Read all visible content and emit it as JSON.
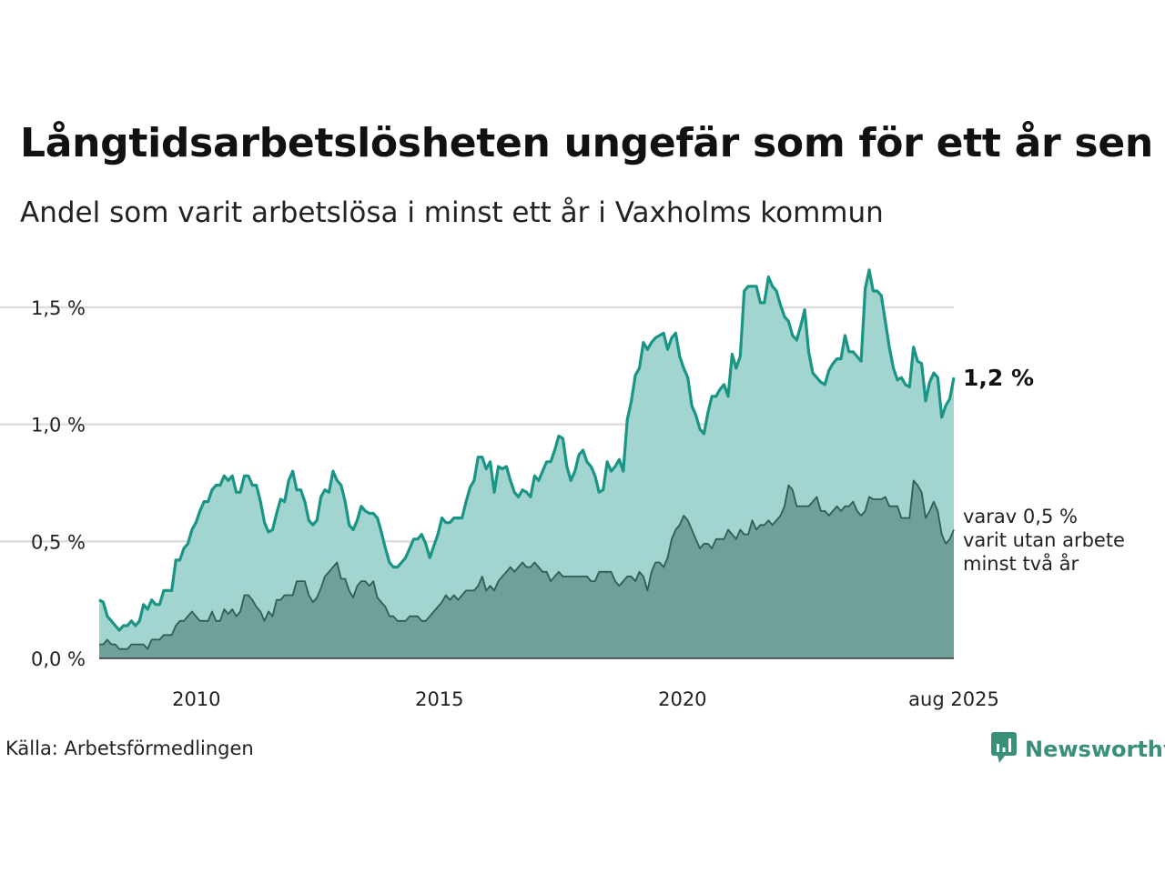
{
  "title": "Långtidsarbetslösheten ungefär som för ett år sen",
  "subtitle": "Andel som varit arbetslösa i minst ett år i Vaxholms kommun",
  "source": "Källa: Arbetsförmedlingen",
  "brand": "Newsworthy",
  "colors": {
    "main_line": "#1a9484",
    "main_fill": "#a2d5cf",
    "sub_line": "#2f5f54",
    "sub_fill": "#70a098",
    "grid": "#dddddd",
    "brand": "#3a8f7a"
  },
  "chart_data": {
    "type": "area",
    "x_start": "2008-01",
    "x_end": "2025-08",
    "x_tick_labels": [
      "2010",
      "2015",
      "2020",
      "aug 2025"
    ],
    "x_tick_dates": [
      "2010-01",
      "2015-01",
      "2020-01",
      "2025-08"
    ],
    "y_tick_labels": [
      "0,0 %",
      "0,5 %",
      "1,0 %",
      "1,5 %"
    ],
    "y_ticks": [
      0,
      0.5,
      1.0,
      1.5
    ],
    "ylim": [
      0,
      1.7
    ],
    "grid": true,
    "end_labels": {
      "main": "1,2 %",
      "sub_lines": [
        "varav 0,5 %",
        "varit utan arbete",
        "minst två år"
      ]
    },
    "series": [
      {
        "key": "main",
        "values": [
          0.25,
          0.24,
          0.18,
          0.16,
          0.14,
          0.12,
          0.14,
          0.14,
          0.16,
          0.14,
          0.16,
          0.23,
          0.21,
          0.25,
          0.23,
          0.23,
          0.29,
          0.29,
          0.29,
          0.42,
          0.42,
          0.47,
          0.49,
          0.55,
          0.58,
          0.63,
          0.67,
          0.67,
          0.72,
          0.74,
          0.74,
          0.78,
          0.76,
          0.78,
          0.71,
          0.71,
          0.78,
          0.78,
          0.74,
          0.74,
          0.67,
          0.58,
          0.54,
          0.55,
          0.62,
          0.68,
          0.67,
          0.76,
          0.8,
          0.72,
          0.72,
          0.67,
          0.59,
          0.57,
          0.59,
          0.69,
          0.72,
          0.71,
          0.8,
          0.76,
          0.74,
          0.67,
          0.57,
          0.55,
          0.59,
          0.65,
          0.63,
          0.62,
          0.62,
          0.6,
          0.54,
          0.47,
          0.41,
          0.39,
          0.39,
          0.41,
          0.43,
          0.47,
          0.51,
          0.51,
          0.53,
          0.49,
          0.43,
          0.48,
          0.53,
          0.6,
          0.58,
          0.58,
          0.6,
          0.6,
          0.6,
          0.67,
          0.73,
          0.76,
          0.86,
          0.86,
          0.81,
          0.84,
          0.71,
          0.82,
          0.81,
          0.82,
          0.76,
          0.71,
          0.69,
          0.72,
          0.71,
          0.69,
          0.78,
          0.76,
          0.8,
          0.84,
          0.84,
          0.89,
          0.95,
          0.94,
          0.82,
          0.76,
          0.8,
          0.87,
          0.89,
          0.84,
          0.82,
          0.78,
          0.71,
          0.72,
          0.84,
          0.8,
          0.82,
          0.85,
          0.8,
          1.02,
          1.1,
          1.21,
          1.24,
          1.35,
          1.32,
          1.35,
          1.37,
          1.38,
          1.39,
          1.32,
          1.37,
          1.39,
          1.29,
          1.24,
          1.2,
          1.08,
          1.04,
          0.98,
          0.96,
          1.05,
          1.12,
          1.12,
          1.15,
          1.17,
          1.12,
          1.3,
          1.24,
          1.29,
          1.57,
          1.59,
          1.59,
          1.59,
          1.52,
          1.52,
          1.63,
          1.59,
          1.57,
          1.51,
          1.46,
          1.44,
          1.38,
          1.36,
          1.42,
          1.49,
          1.31,
          1.22,
          1.2,
          1.18,
          1.17,
          1.23,
          1.26,
          1.28,
          1.28,
          1.38,
          1.31,
          1.31,
          1.29,
          1.27,
          1.58,
          1.66,
          1.57,
          1.57,
          1.55,
          1.44,
          1.33,
          1.24,
          1.19,
          1.2,
          1.17,
          1.16,
          1.33,
          1.27,
          1.26,
          1.1,
          1.18,
          1.22,
          1.2,
          1.03,
          1.08,
          1.11,
          1.2
        ]
      },
      {
        "key": "sub",
        "values": [
          0.06,
          0.06,
          0.08,
          0.06,
          0.06,
          0.04,
          0.04,
          0.04,
          0.06,
          0.06,
          0.06,
          0.06,
          0.04,
          0.08,
          0.08,
          0.08,
          0.1,
          0.1,
          0.1,
          0.14,
          0.16,
          0.16,
          0.18,
          0.2,
          0.18,
          0.16,
          0.16,
          0.16,
          0.2,
          0.16,
          0.16,
          0.21,
          0.19,
          0.21,
          0.18,
          0.2,
          0.27,
          0.27,
          0.25,
          0.22,
          0.2,
          0.16,
          0.2,
          0.18,
          0.25,
          0.25,
          0.27,
          0.27,
          0.27,
          0.33,
          0.33,
          0.33,
          0.27,
          0.24,
          0.26,
          0.3,
          0.35,
          0.37,
          0.39,
          0.41,
          0.34,
          0.34,
          0.29,
          0.26,
          0.31,
          0.33,
          0.33,
          0.31,
          0.33,
          0.26,
          0.24,
          0.22,
          0.18,
          0.18,
          0.16,
          0.16,
          0.16,
          0.18,
          0.18,
          0.18,
          0.16,
          0.16,
          0.18,
          0.2,
          0.22,
          0.24,
          0.27,
          0.25,
          0.27,
          0.25,
          0.27,
          0.29,
          0.29,
          0.29,
          0.31,
          0.35,
          0.29,
          0.31,
          0.29,
          0.33,
          0.35,
          0.37,
          0.39,
          0.37,
          0.39,
          0.41,
          0.39,
          0.39,
          0.41,
          0.39,
          0.37,
          0.37,
          0.33,
          0.35,
          0.37,
          0.35,
          0.35,
          0.35,
          0.35,
          0.35,
          0.35,
          0.35,
          0.33,
          0.33,
          0.37,
          0.37,
          0.37,
          0.37,
          0.33,
          0.31,
          0.33,
          0.35,
          0.35,
          0.33,
          0.37,
          0.35,
          0.29,
          0.37,
          0.41,
          0.41,
          0.39,
          0.43,
          0.51,
          0.55,
          0.57,
          0.61,
          0.59,
          0.55,
          0.51,
          0.47,
          0.49,
          0.49,
          0.47,
          0.51,
          0.51,
          0.51,
          0.55,
          0.53,
          0.51,
          0.55,
          0.53,
          0.53,
          0.59,
          0.55,
          0.57,
          0.57,
          0.59,
          0.57,
          0.59,
          0.61,
          0.65,
          0.74,
          0.72,
          0.65,
          0.65,
          0.65,
          0.65,
          0.67,
          0.69,
          0.63,
          0.63,
          0.61,
          0.63,
          0.65,
          0.63,
          0.65,
          0.65,
          0.67,
          0.63,
          0.61,
          0.63,
          0.69,
          0.68,
          0.68,
          0.68,
          0.69,
          0.65,
          0.65,
          0.65,
          0.6,
          0.6,
          0.6,
          0.76,
          0.74,
          0.71,
          0.6,
          0.63,
          0.67,
          0.63,
          0.53,
          0.49,
          0.51,
          0.55
        ]
      }
    ]
  }
}
